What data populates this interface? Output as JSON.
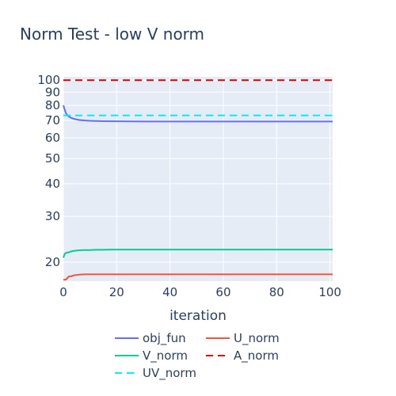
{
  "chart_data": {
    "type": "line",
    "title": "Norm Test - low V norm",
    "xlabel": "iteration",
    "ylabel": "",
    "xlim": [
      0,
      101
    ],
    "ylim": [
      16.9,
      103
    ],
    "yscale": "log",
    "grid": true,
    "legend_placement": "bottom",
    "x_ticks": [
      0,
      20,
      40,
      60,
      80,
      100
    ],
    "y_ticks": [
      20,
      30,
      40,
      50,
      60,
      70,
      80,
      90,
      100
    ],
    "series": [
      {
        "name": "obj_fun",
        "color": "#636efa",
        "dash": "solid",
        "x": [
          0,
          0.5,
          1,
          2,
          3,
          4,
          5,
          6,
          8,
          10,
          12,
          15,
          20,
          25,
          30,
          40,
          50,
          60,
          70,
          80,
          90,
          100,
          101
        ],
        "y": [
          80,
          77,
          74.5,
          72.5,
          71.6,
          71.0,
          70.6,
          70.3,
          70.0,
          69.8,
          69.7,
          69.6,
          69.5,
          69.45,
          69.4,
          69.4,
          69.4,
          69.4,
          69.4,
          69.4,
          69.4,
          69.4,
          69.4
        ]
      },
      {
        "name": "U_norm",
        "color": "#ef553b",
        "dash": "solid",
        "x": [
          0,
          1,
          2,
          3,
          4,
          5,
          6,
          8,
          10,
          15,
          20,
          30,
          40,
          50,
          60,
          70,
          80,
          90,
          100,
          101
        ],
        "y": [
          17.1,
          17.15,
          17.6,
          17.65,
          17.8,
          17.85,
          17.9,
          17.95,
          17.95,
          17.95,
          17.95,
          17.95,
          17.95,
          17.95,
          17.95,
          17.95,
          17.95,
          17.95,
          17.95,
          17.95
        ]
      },
      {
        "name": "V_norm",
        "color": "#00cc96",
        "dash": "solid",
        "x": [
          0,
          0.5,
          1,
          2,
          3,
          4,
          5,
          6,
          8,
          10,
          12,
          15,
          18,
          20,
          30,
          40,
          50,
          60,
          70,
          80,
          90,
          100,
          101
        ],
        "y": [
          20.8,
          21.5,
          21.7,
          21.8,
          22.0,
          22.1,
          22.15,
          22.2,
          22.25,
          22.25,
          22.3,
          22.3,
          22.35,
          22.35,
          22.35,
          22.35,
          22.35,
          22.35,
          22.35,
          22.35,
          22.35,
          22.35,
          22.35
        ]
      },
      {
        "name": "A_norm",
        "color": "#dd0000",
        "dash": "dash",
        "x": [
          0,
          101
        ],
        "y": [
          100,
          100
        ]
      },
      {
        "name": "UV_norm",
        "color": "#00f0f0",
        "dash": "dash",
        "x": [
          0,
          101
        ],
        "y": [
          73.2,
          73.2
        ]
      }
    ]
  }
}
